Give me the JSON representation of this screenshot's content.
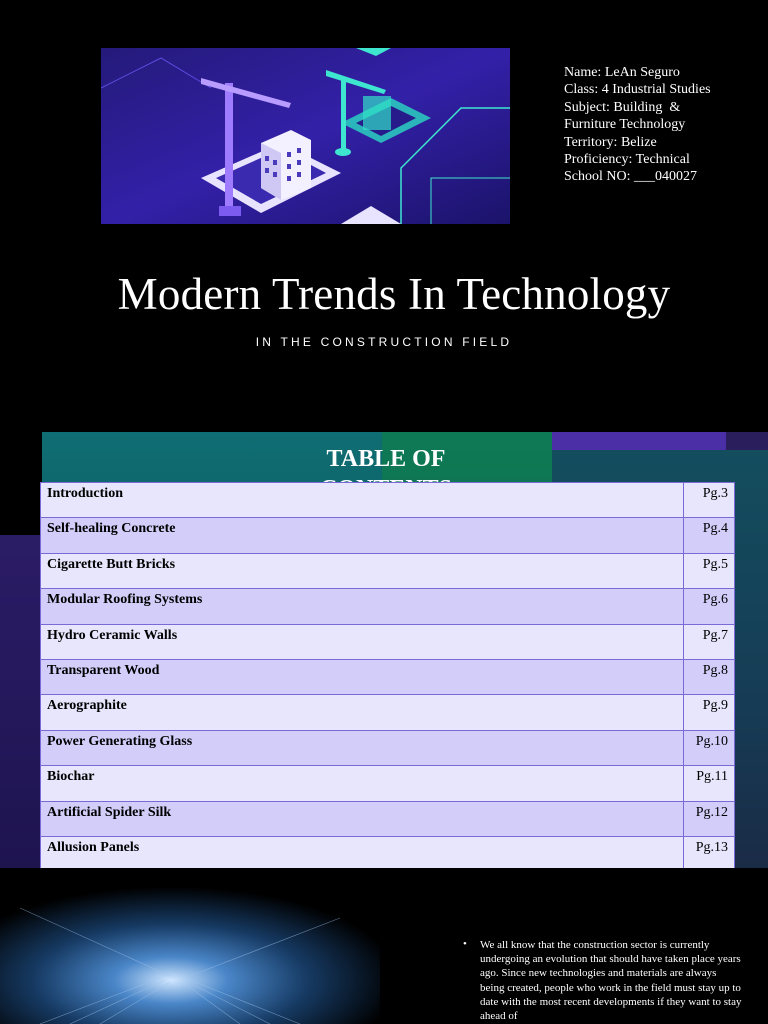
{
  "slide1": {
    "info_lines": [
      "Name: LeAn Seguro",
      "Class: 4 Industrial Studies",
      "Subject: Building  &",
      "Furniture Technology",
      "Territory: Belize",
      "Proficiency: Technical",
      "School NO: ___040027"
    ],
    "title": "Modern Trends In Technology",
    "subtitle": "IN THE CONSTRUCTION FIELD"
  },
  "slide2": {
    "toc_title": "TABLE OF CONTENTS",
    "rows": [
      {
        "topic": "Introduction",
        "page": "Pg.3"
      },
      {
        "topic": "Self-healing Concrete",
        "page": "Pg.4"
      },
      {
        "topic": "Cigarette Butt Bricks",
        "page": "Pg.5"
      },
      {
        "topic": "Modular Roofing Systems",
        "page": "Pg.6"
      },
      {
        "topic": "Hydro Ceramic Walls",
        "page": "Pg.7"
      },
      {
        "topic": "Transparent Wood",
        "page": "Pg.8"
      },
      {
        "topic": "Aerographite",
        "page": "Pg.9"
      },
      {
        "topic": "Power Generating Glass",
        "page": "Pg.10"
      },
      {
        "topic": "Biochar",
        "page": "Pg.11"
      },
      {
        "topic": "Artificial Spider Silk",
        "page": "Pg.12"
      },
      {
        "topic": "Allusion Panels",
        "page": "Pg.13"
      }
    ]
  },
  "slide3": {
    "body_text": "We all know that the construction sector is currently undergoing an evolution that should have taken place years ago. Since new technologies and materials are always being created, people who work in the field must stay up to date with the most recent developments if they want to stay ahead of"
  }
}
